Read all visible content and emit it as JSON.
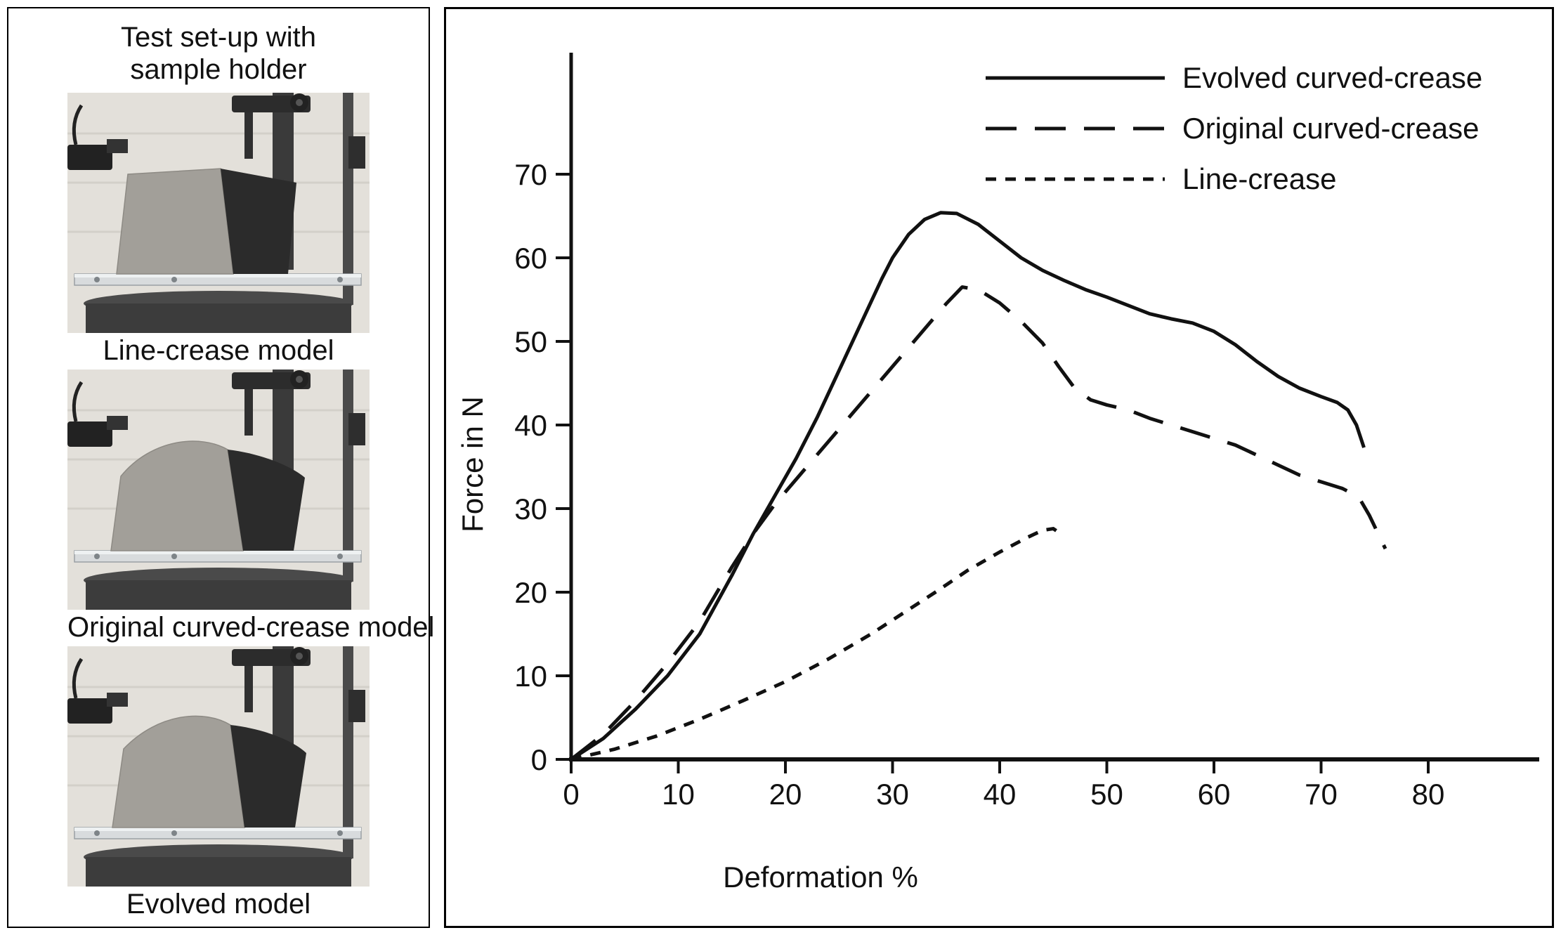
{
  "left_panel": {
    "title": "Test set-up with\nsample holder",
    "photos": [
      {
        "caption": "Line-crease model"
      },
      {
        "caption": "Original curved-crease model"
      },
      {
        "caption": "Evolved model"
      }
    ]
  },
  "chart_data": {
    "type": "line",
    "title": "",
    "xlabel": "Deformation %",
    "ylabel": "Force in N",
    "xlim": [
      0,
      90
    ],
    "ylim": [
      0,
      84
    ],
    "xticks": [
      0,
      10,
      20,
      30,
      40,
      50,
      60,
      70,
      80
    ],
    "yticks": [
      0,
      10,
      20,
      30,
      40,
      50,
      60,
      70
    ],
    "grid": false,
    "legend_position": "top-right",
    "line_color": "#111111",
    "series": [
      {
        "name": "Evolved curved-crease",
        "linestyle": "solid",
        "points": [
          [
            0,
            0
          ],
          [
            3,
            2.5
          ],
          [
            6,
            6
          ],
          [
            9,
            10
          ],
          [
            12,
            15
          ],
          [
            15,
            22
          ],
          [
            17,
            27
          ],
          [
            19,
            31.5
          ],
          [
            21,
            36
          ],
          [
            23,
            41
          ],
          [
            25,
            46.5
          ],
          [
            27,
            52
          ],
          [
            29,
            57.5
          ],
          [
            30,
            60
          ],
          [
            31.5,
            62.8
          ],
          [
            33,
            64.6
          ],
          [
            34.5,
            65.4
          ],
          [
            36,
            65.3
          ],
          [
            38,
            64
          ],
          [
            40,
            62
          ],
          [
            42,
            60
          ],
          [
            44,
            58.5
          ],
          [
            46,
            57.3
          ],
          [
            48,
            56.2
          ],
          [
            50,
            55.3
          ],
          [
            52,
            54.3
          ],
          [
            54,
            53.3
          ],
          [
            56,
            52.7
          ],
          [
            58,
            52.2
          ],
          [
            60,
            51.2
          ],
          [
            62,
            49.6
          ],
          [
            64,
            47.6
          ],
          [
            66,
            45.8
          ],
          [
            68,
            44.4
          ],
          [
            70,
            43.4
          ],
          [
            71.5,
            42.7
          ],
          [
            72.5,
            41.8
          ],
          [
            73.3,
            40
          ],
          [
            74,
            37.3
          ]
        ]
      },
      {
        "name": "Original curved-crease",
        "linestyle": "long-dash",
        "points": [
          [
            0,
            0
          ],
          [
            3,
            3
          ],
          [
            6,
            7
          ],
          [
            9,
            11.5
          ],
          [
            12,
            16.5
          ],
          [
            15,
            23
          ],
          [
            17,
            27
          ],
          [
            19,
            30.5
          ],
          [
            21,
            33.5
          ],
          [
            23,
            36.5
          ],
          [
            25,
            39.5
          ],
          [
            27,
            42.5
          ],
          [
            29,
            45.5
          ],
          [
            31,
            48.5
          ],
          [
            33,
            51.5
          ],
          [
            35,
            54.5
          ],
          [
            36.5,
            56.5
          ],
          [
            38,
            56.2
          ],
          [
            40,
            54.6
          ],
          [
            42,
            52.4
          ],
          [
            44,
            49.8
          ],
          [
            45.5,
            47
          ],
          [
            47,
            44.4
          ],
          [
            48.5,
            43
          ],
          [
            50,
            42.4
          ],
          [
            52,
            41.8
          ],
          [
            54,
            40.8
          ],
          [
            56,
            40
          ],
          [
            58,
            39.2
          ],
          [
            60,
            38.4
          ],
          [
            62,
            37.6
          ],
          [
            64,
            36.4
          ],
          [
            66,
            35.2
          ],
          [
            68,
            34
          ],
          [
            70,
            33.2
          ],
          [
            72,
            32.4
          ],
          [
            73.5,
            31.4
          ],
          [
            74.5,
            29.2
          ],
          [
            76,
            25.2
          ]
        ]
      },
      {
        "name": "Line-crease",
        "linestyle": "short-dash",
        "points": [
          [
            0,
            0
          ],
          [
            4,
            1.2
          ],
          [
            8,
            2.8
          ],
          [
            12,
            4.8
          ],
          [
            16,
            7
          ],
          [
            20,
            9.3
          ],
          [
            24,
            12
          ],
          [
            28,
            15
          ],
          [
            31,
            17.5
          ],
          [
            34,
            20
          ],
          [
            37,
            22.6
          ],
          [
            40,
            24.8
          ],
          [
            42.5,
            26.5
          ],
          [
            44,
            27.4
          ],
          [
            45,
            27.6
          ],
          [
            45.8,
            26.9
          ]
        ]
      }
    ]
  }
}
